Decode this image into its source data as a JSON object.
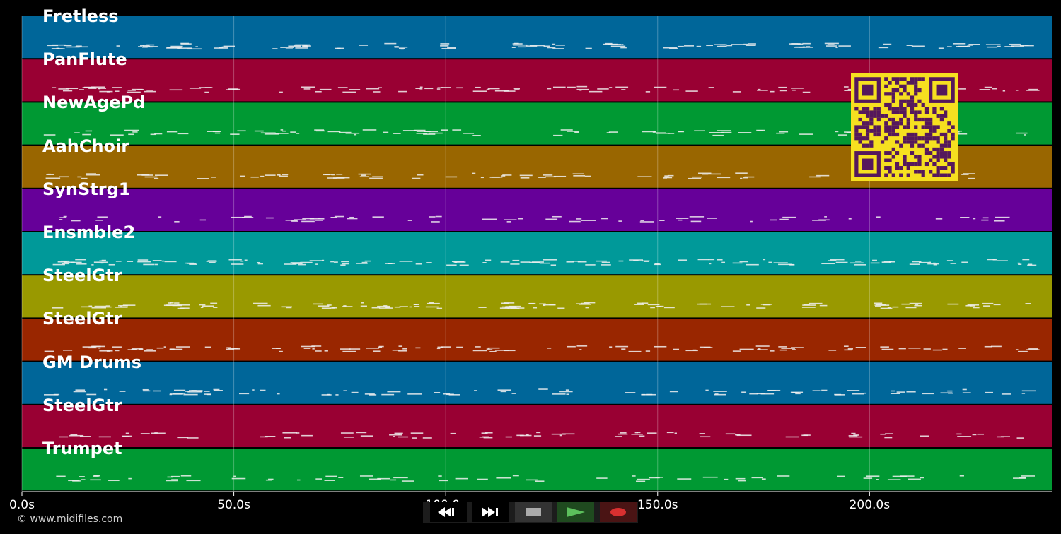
{
  "tracks": [
    {
      "name": "Fretless",
      "color": "#006699"
    },
    {
      "name": "PanFlute",
      "color": "#990033"
    },
    {
      "name": "NewAgePd",
      "color": "#009933"
    },
    {
      "name": "AahChoir",
      "color": "#996600"
    },
    {
      "name": "SynStrg1",
      "color": "#660099"
    },
    {
      "name": "Ensmble2",
      "color": "#009999"
    },
    {
      "name": "SteelGtr",
      "color": "#999900"
    },
    {
      "name": "SteelGtr",
      "color": "#992600"
    },
    {
      "name": "GM Drums",
      "color": "#006699"
    },
    {
      "name": "SteelGtr",
      "color": "#990033"
    },
    {
      "name": "Trumpet",
      "color": "#009933"
    }
  ],
  "time_axis": {
    "ticks": [
      "0.0s",
      "50.0s",
      "100.0s",
      "150.0s",
      "200.0s"
    ],
    "tick_values": [
      0,
      50,
      100,
      150,
      200
    ],
    "max_seconds": 243
  },
  "controls": {
    "rewind": "rewind-icon",
    "fast_forward": "fast-forward-icon",
    "stop": "stop-icon",
    "play": "play-icon",
    "record": "record-icon"
  },
  "copyright": "© www.midifiles.com",
  "qr_code": {
    "color_dark": "#55185c",
    "color_light": "#f6e020"
  }
}
